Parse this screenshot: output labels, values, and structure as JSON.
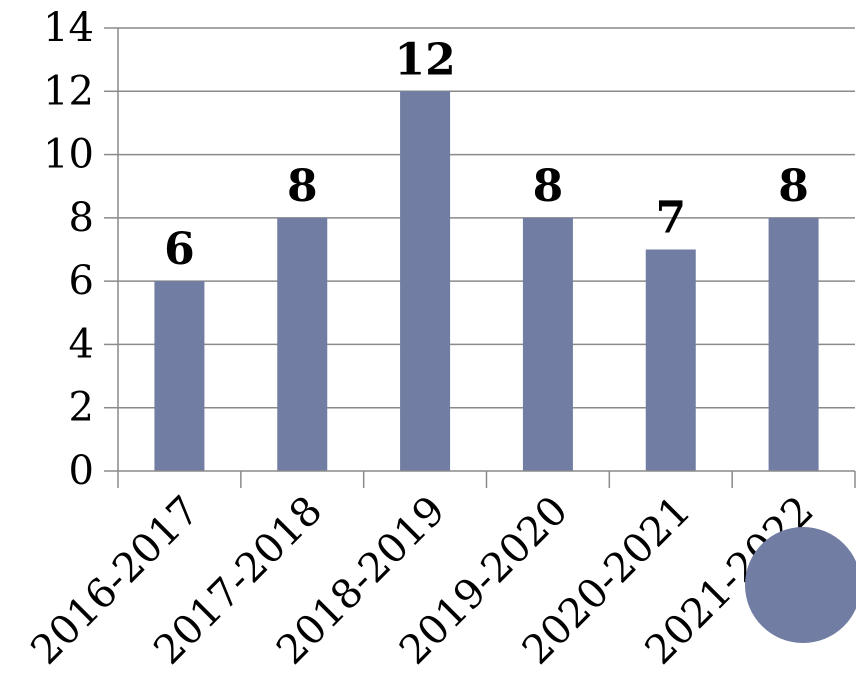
{
  "chart_data": {
    "type": "bar",
    "categories": [
      "2016-2017",
      "2017-2018",
      "2018-2019",
      "2019-2020",
      "2020-2021",
      "2021-2022"
    ],
    "values": [
      6,
      8,
      12,
      8,
      7,
      8
    ],
    "ylim": [
      0,
      14
    ],
    "yticks": [
      0,
      2,
      4,
      6,
      8,
      10,
      12,
      14
    ],
    "grid": true,
    "bar_color": "#717da3",
    "decoration_color": "#717da3"
  }
}
